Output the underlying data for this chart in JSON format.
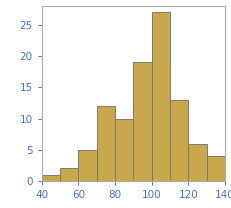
{
  "bin_edges": [
    40,
    50,
    60,
    70,
    80,
    90,
    100,
    110,
    120,
    130,
    140
  ],
  "heights": [
    1,
    2,
    5,
    12,
    10,
    19,
    27,
    13,
    6,
    4
  ],
  "bar_color": "#C9A84C",
  "edge_color": "#7a7a7a",
  "xlim": [
    40,
    140
  ],
  "ylim": [
    0,
    28
  ],
  "yticks": [
    0,
    5,
    10,
    15,
    20,
    25
  ],
  "xticks": [
    40,
    60,
    80,
    100,
    120,
    140
  ],
  "tick_color": "#4472C4",
  "spine_color": "#aaaaaa",
  "background_color": "#ffffff",
  "figsize": [
    2.32,
    2.08
  ],
  "dpi": 100
}
